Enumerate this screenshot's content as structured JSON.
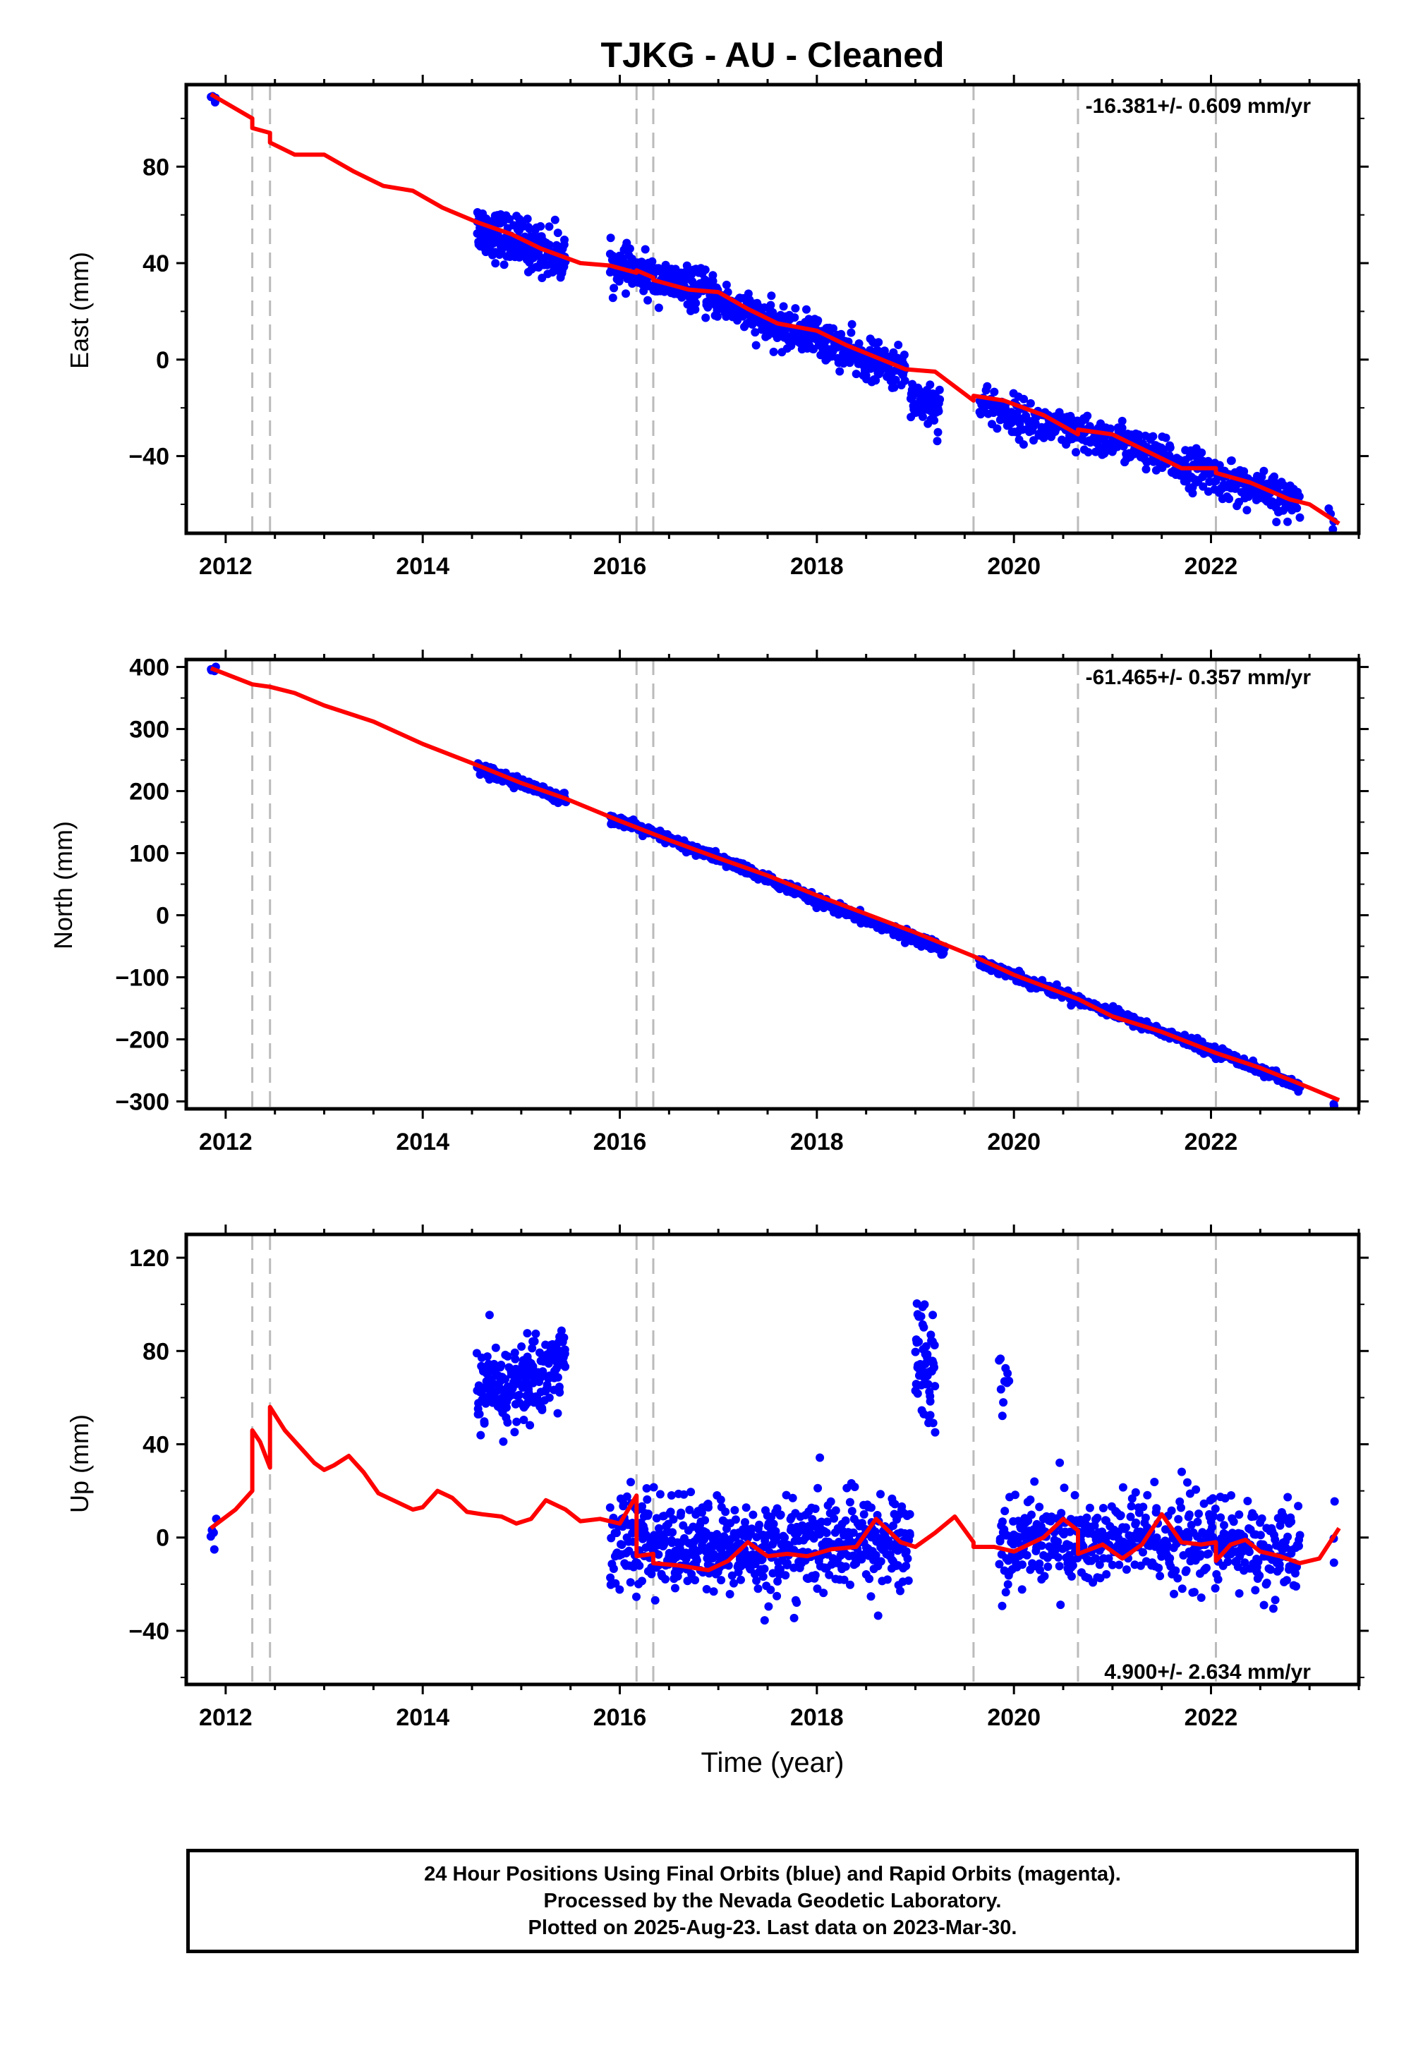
{
  "title": "TJKG  - AU - Cleaned",
  "xlabel": "Time (year)",
  "footer": {
    "line1": "24 Hour Positions Using Final Orbits (blue) and Rapid Orbits (magenta).",
    "line2": "Processed by the Nevada Geodetic Laboratory.",
    "line3": "Plotted on 2025-Aug-23. Last data on 2023-Mar-30."
  },
  "colors": {
    "data": "#0000ff",
    "model": "#ff0000",
    "steps": "#bbbbbb",
    "frame": "#000000"
  },
  "chart_data": [
    {
      "type": "scatter",
      "ylabel": "East (mm)",
      "rate_label": "-16.381+/- 0.609 mm/yr",
      "xlim": [
        2011.6,
        2023.5
      ],
      "ylim": [
        -72,
        114
      ],
      "xticks": [
        2012,
        2014,
        2016,
        2018,
        2020,
        2022
      ],
      "yticks": [
        80,
        40,
        0,
        -40
      ],
      "step_lines": [
        2012.27,
        2012.45,
        2016.17,
        2016.34,
        2019.59,
        2020.65,
        2022.05
      ],
      "series": [
        {
          "name": "Final Orbits",
          "segments": [
            {
              "x": [
                2011.85,
                2011.9
              ],
              "y": [
                110,
                108
              ],
              "spread": 1,
              "n": 6
            },
            {
              "x": [
                2014.55,
                2014.8,
                2015.1,
                2015.45
              ],
              "y": [
                55,
                51,
                47,
                42
              ],
              "spread": 5,
              "n": 220
            },
            {
              "x": [
                2015.9,
                2016.3,
                2016.8,
                2017.2,
                2017.6,
                2018.0,
                2018.4,
                2018.9
              ],
              "y": [
                40,
                34,
                29,
                21,
                13,
                10,
                1,
                -5
              ],
              "spread": 4,
              "n": 600
            },
            {
              "x": [
                2018.95,
                2019.25
              ],
              "y": [
                -15,
                -20
              ],
              "spread": 5,
              "n": 60
            },
            {
              "x": [
                2019.65,
                2019.95,
                2020.3,
                2020.7,
                2021.1,
                2021.5,
                2021.9,
                2022.3,
                2022.9
              ],
              "y": [
                -17,
                -23,
                -27,
                -32,
                -34,
                -41,
                -46,
                -52,
                -60
              ],
              "spread": 4,
              "n": 520
            },
            {
              "x": [
                2023.2,
                2023.25
              ],
              "y": [
                -61,
                -68
              ],
              "spread": 2,
              "n": 4
            }
          ]
        },
        {
          "name": "Model",
          "x": [
            2011.85,
            2012.27,
            2012.27,
            2012.45,
            2012.45,
            2012.7,
            2013.0,
            2013.3,
            2013.6,
            2013.9,
            2014.2,
            2014.55,
            2014.9,
            2015.2,
            2015.6,
            2015.9,
            2016.17,
            2016.17,
            2016.34,
            2016.34,
            2016.7,
            2017.0,
            2017.3,
            2017.6,
            2018.0,
            2018.3,
            2018.6,
            2018.9,
            2019.2,
            2019.59,
            2019.59,
            2019.9,
            2020.3,
            2020.65,
            2020.65,
            2021.0,
            2021.3,
            2021.7,
            2022.05,
            2022.05,
            2022.4,
            2022.8,
            2023.0,
            2023.3
          ],
          "y": [
            110,
            100,
            96,
            94,
            90,
            85,
            85,
            78,
            72,
            70,
            63,
            57,
            52,
            46,
            40,
            39,
            36,
            37,
            34,
            33,
            29,
            28,
            21,
            15,
            12,
            6,
            1,
            -4,
            -5,
            -17,
            -15,
            -17,
            -23,
            -31,
            -29,
            -31,
            -37,
            -45,
            -45,
            -47,
            -51,
            -58,
            -60,
            -68
          ]
        }
      ]
    },
    {
      "type": "scatter",
      "ylabel": "North (mm)",
      "rate_label": "-61.465+/- 0.357 mm/yr",
      "xlim": [
        2011.6,
        2023.5
      ],
      "ylim": [
        -312,
        412
      ],
      "xticks": [
        2012,
        2014,
        2016,
        2018,
        2020,
        2022
      ],
      "yticks": [
        400,
        300,
        200,
        100,
        0,
        -100,
        -200,
        -300
      ],
      "step_lines": [
        2012.27,
        2012.45,
        2016.17,
        2016.34,
        2019.59,
        2020.65,
        2022.05
      ],
      "series": [
        {
          "name": "Final Orbits",
          "segments": [
            {
              "x": [
                2011.85,
                2011.9
              ],
              "y": [
                398,
                396
              ],
              "spread": 2,
              "n": 6
            },
            {
              "x": [
                2014.55,
                2015.0,
                2015.45
              ],
              "y": [
                240,
                212,
                186
              ],
              "spread": 4,
              "n": 220
            },
            {
              "x": [
                2015.9,
                2016.5,
                2017.2,
                2017.9,
                2018.5,
                2019.3
              ],
              "y": [
                157,
                122,
                79,
                30,
                -8,
                -55
              ],
              "spread": 4,
              "n": 620
            },
            {
              "x": [
                2019.65,
                2020.2,
                2020.8,
                2021.5,
                2022.2,
                2022.9
              ],
              "y": [
                -75,
                -109,
                -145,
                -188,
                -228,
                -278
              ],
              "spread": 4,
              "n": 520
            },
            {
              "x": [
                2023.25
              ],
              "y": [
                -305
              ],
              "spread": 2,
              "n": 3
            }
          ]
        },
        {
          "name": "Model",
          "x": [
            2011.85,
            2012.27,
            2012.45,
            2012.7,
            2013.0,
            2013.5,
            2014.0,
            2014.55,
            2015.0,
            2015.45,
            2016.0,
            2016.5,
            2017.0,
            2017.5,
            2018.0,
            2018.5,
            2019.0,
            2019.59,
            2020.0,
            2020.65,
            2021.0,
            2021.5,
            2022.05,
            2022.5,
            2023.0,
            2023.3
          ],
          "y": [
            398,
            372,
            368,
            358,
            338,
            312,
            276,
            242,
            213,
            188,
            152,
            121,
            92,
            64,
            32,
            2,
            -28,
            -66,
            -96,
            -135,
            -163,
            -188,
            -222,
            -246,
            -278,
            -298
          ]
        }
      ]
    },
    {
      "type": "scatter",
      "ylabel": "Up (mm)",
      "rate_label": "4.900+/- 2.634 mm/yr",
      "xlim": [
        2011.6,
        2023.5
      ],
      "ylim": [
        -63,
        130
      ],
      "xticks": [
        2012,
        2014,
        2016,
        2018,
        2020,
        2022
      ],
      "yticks": [
        120,
        80,
        40,
        0,
        -40
      ],
      "step_lines": [
        2012.27,
        2012.45,
        2016.17,
        2016.34,
        2019.59,
        2020.65,
        2022.05
      ],
      "series": [
        {
          "name": "Final Orbits",
          "segments": [
            {
              "x": [
                2011.85,
                2011.9
              ],
              "y": [
                4,
                3
              ],
              "spread": 3,
              "n": 5
            },
            {
              "x": [
                2014.55,
                2014.9,
                2015.2,
                2015.45
              ],
              "y": [
                63,
                64,
                70,
                76
              ],
              "spread": 9,
              "n": 220
            },
            {
              "x": [
                2015.9,
                2016.5,
                2017.2,
                2017.9,
                2018.5,
                2018.95
              ],
              "y": [
                0,
                -3,
                -5,
                -4,
                -2,
                -3
              ],
              "spread": 10,
              "n": 640
            },
            {
              "x": [
                2019.0,
                2019.2
              ],
              "y": [
                84,
                66
              ],
              "spread": 13,
              "n": 60
            },
            {
              "x": [
                2019.85,
                2019.95
              ],
              "y": [
                75,
                63
              ],
              "spread": 8,
              "n": 10
            },
            {
              "x": [
                2019.85,
                2020.3,
                2020.8,
                2021.3,
                2021.8,
                2022.3,
                2022.9
              ],
              "y": [
                -4,
                0,
                -3,
                0,
                -2,
                -3,
                -10
              ],
              "spread": 10,
              "n": 520
            },
            {
              "x": [
                2023.25
              ],
              "y": [
                4
              ],
              "spread": 10,
              "n": 3
            }
          ]
        },
        {
          "name": "Model",
          "x": [
            2011.85,
            2012.1,
            2012.27,
            2012.27,
            2012.35,
            2012.45,
            2012.45,
            2012.6,
            2012.75,
            2012.9,
            2013.0,
            2013.1,
            2013.25,
            2013.4,
            2013.55,
            2013.75,
            2013.9,
            2014.0,
            2014.15,
            2014.3,
            2014.45,
            2014.6,
            2014.8,
            2014.95,
            2015.1,
            2015.25,
            2015.45,
            2015.6,
            2015.8,
            2016.0,
            2016.17,
            2016.17,
            2016.34,
            2016.34,
            2016.6,
            2016.9,
            2017.1,
            2017.3,
            2017.5,
            2017.7,
            2017.9,
            2018.15,
            2018.4,
            2018.6,
            2018.85,
            2019.0,
            2019.2,
            2019.4,
            2019.59,
            2019.59,
            2019.8,
            2020.0,
            2020.3,
            2020.5,
            2020.65,
            2020.65,
            2020.9,
            2021.1,
            2021.3,
            2021.5,
            2021.7,
            2021.9,
            2022.05,
            2022.05,
            2022.2,
            2022.35,
            2022.5,
            2022.7,
            2022.9,
            2023.1,
            2023.3
          ],
          "y": [
            4,
            12,
            20,
            46,
            41,
            30,
            56,
            46,
            39,
            32,
            29,
            31,
            35,
            28,
            19,
            15,
            12,
            13,
            20,
            17,
            11,
            10,
            9,
            6,
            8,
            16,
            12,
            7,
            8,
            6,
            18,
            -8,
            -7,
            -11,
            -12,
            -14,
            -10,
            -2,
            -8,
            -7,
            -8,
            -5,
            -4,
            8,
            -2,
            -4,
            2,
            9,
            -2,
            -4,
            -4,
            -6,
            0,
            8,
            3,
            -7,
            -3,
            -9,
            -3,
            10,
            -2,
            -3,
            -2,
            -10,
            -3,
            -1,
            -6,
            -8,
            -11,
            -9,
            4
          ]
        }
      ]
    }
  ]
}
